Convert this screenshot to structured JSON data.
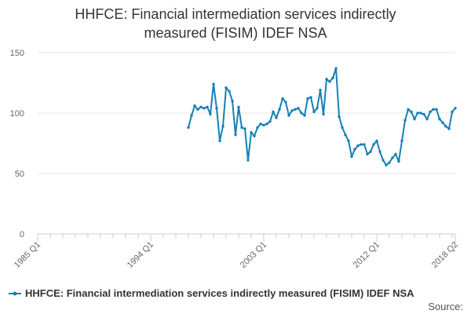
{
  "chart_data": {
    "type": "line",
    "title_lines": [
      "HHFCE: Financial intermediation services indirectly",
      "measured (FISIM) IDEF NSA"
    ],
    "xlabel": "",
    "ylabel": "",
    "ylim": [
      0,
      150
    ],
    "y_ticks": [
      0,
      50,
      100,
      150
    ],
    "x_ticks": [
      "1985 Q1",
      "1994 Q1",
      "2003 Q1",
      "2012 Q1",
      "2018 Q2"
    ],
    "x_range": [
      "1985 Q1",
      "2018 Q2"
    ],
    "grid": "horizontal",
    "legend_position": "bottom-left",
    "series": [
      {
        "name": "HHFCE: Financial intermediation services indirectly measured (FISIM) IDEF NSA",
        "color": "#1580b3",
        "x": [
          "1997 Q1",
          "1997 Q2",
          "1997 Q3",
          "1997 Q4",
          "1998 Q1",
          "1998 Q2",
          "1998 Q3",
          "1998 Q4",
          "1999 Q1",
          "1999 Q2",
          "1999 Q3",
          "1999 Q4",
          "2000 Q1",
          "2000 Q2",
          "2000 Q3",
          "2000 Q4",
          "2001 Q1",
          "2001 Q2",
          "2001 Q3",
          "2001 Q4",
          "2002 Q1",
          "2002 Q2",
          "2002 Q3",
          "2002 Q4",
          "2003 Q1",
          "2003 Q2",
          "2003 Q3",
          "2003 Q4",
          "2004 Q1",
          "2004 Q2",
          "2004 Q3",
          "2004 Q4",
          "2005 Q1",
          "2005 Q2",
          "2005 Q3",
          "2005 Q4",
          "2006 Q1",
          "2006 Q2",
          "2006 Q3",
          "2006 Q4",
          "2007 Q1",
          "2007 Q2",
          "2007 Q3",
          "2007 Q4",
          "2008 Q1",
          "2008 Q2",
          "2008 Q3",
          "2008 Q4",
          "2009 Q1",
          "2009 Q2",
          "2009 Q3",
          "2009 Q4",
          "2010 Q1",
          "2010 Q2",
          "2010 Q3",
          "2010 Q4",
          "2011 Q1",
          "2011 Q2",
          "2011 Q3",
          "2011 Q4",
          "2012 Q1",
          "2012 Q2",
          "2012 Q3",
          "2012 Q4",
          "2013 Q1",
          "2013 Q2",
          "2013 Q3",
          "2013 Q4",
          "2014 Q1",
          "2014 Q2",
          "2014 Q3",
          "2014 Q4",
          "2015 Q1",
          "2015 Q2",
          "2015 Q3",
          "2015 Q4",
          "2016 Q1",
          "2016 Q2",
          "2016 Q3",
          "2016 Q4",
          "2017 Q1",
          "2017 Q2",
          "2017 Q3",
          "2017 Q4",
          "2018 Q1",
          "2018 Q2"
        ],
        "values": [
          88,
          98,
          106,
          103,
          105,
          104,
          105,
          99,
          124,
          104,
          77,
          89,
          121,
          118,
          110,
          82,
          105,
          88,
          87,
          61,
          84,
          81,
          88,
          91,
          90,
          91,
          93,
          101,
          96,
          103,
          112,
          109,
          98,
          102,
          103,
          104,
          100,
          98,
          112,
          113,
          101,
          104,
          119,
          99,
          128,
          126,
          129,
          137,
          97,
          88,
          82,
          77,
          64,
          70,
          73,
          74,
          74,
          66,
          68,
          74,
          77,
          68,
          61,
          57,
          59,
          63,
          66,
          60,
          77,
          94,
          103,
          101,
          95,
          100,
          100,
          99,
          95,
          101,
          103,
          103,
          95,
          92,
          89,
          87,
          101,
          104
        ]
      }
    ]
  },
  "source_label": "Source:"
}
